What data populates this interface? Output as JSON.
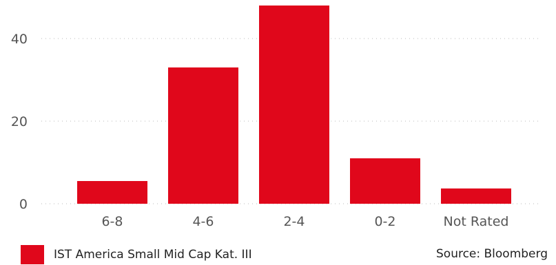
{
  "colors": {
    "bar": "#e0071b",
    "axis_text": "#555555",
    "grid": "#b8b8b8"
  },
  "chart_data": {
    "type": "bar",
    "categories": [
      "6-8",
      "4-6",
      "2-4",
      "0-2",
      "Not Rated"
    ],
    "series": [
      {
        "name": "IST America Small Mid Cap Kat. III",
        "values": [
          5.5,
          33,
          48,
          11,
          3.7
        ]
      }
    ],
    "title": "",
    "xlabel": "",
    "ylabel": "",
    "ylim": [
      0,
      48
    ],
    "yticks": [
      0,
      20,
      40
    ],
    "grid": true,
    "legend": "bottom-left"
  },
  "legend": {
    "label": "IST America Small Mid Cap Kat. III"
  },
  "source": {
    "text": "Source: Bloomberg"
  }
}
